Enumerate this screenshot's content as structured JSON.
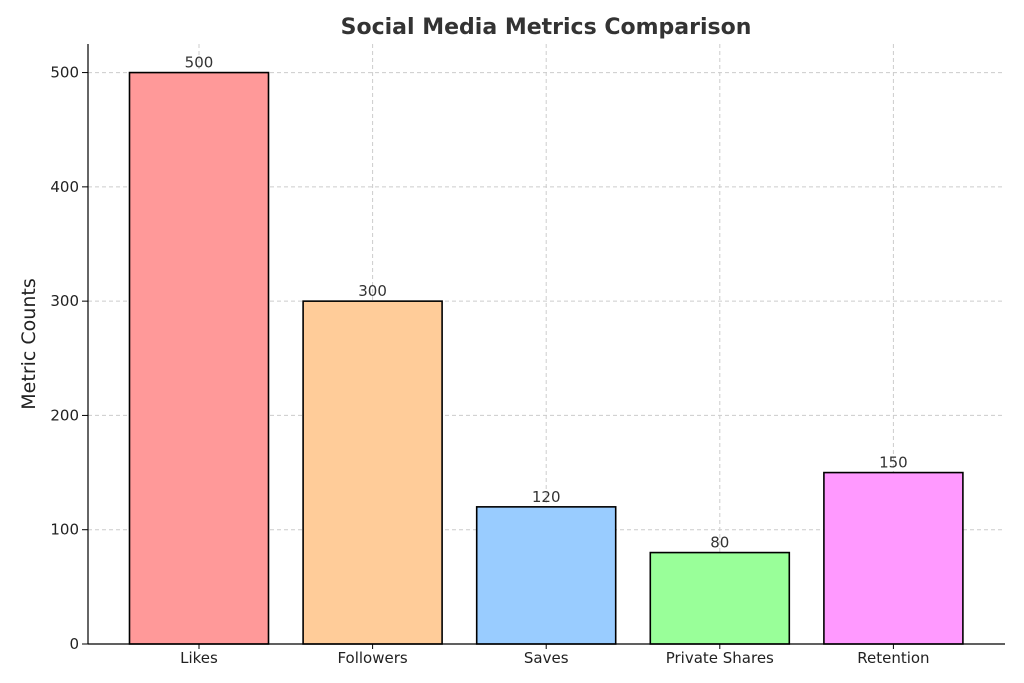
{
  "chart_data": {
    "type": "bar",
    "title": "Social Media Metrics Comparison",
    "xlabel": "",
    "ylabel": "Metric Counts",
    "categories": [
      "Likes",
      "Followers",
      "Saves",
      "Private Shares",
      "Retention"
    ],
    "values": [
      500,
      300,
      120,
      80,
      150
    ],
    "data_labels": [
      "500",
      "300",
      "120",
      "80",
      "150"
    ],
    "colors": [
      "#ff9999",
      "#ffcc99",
      "#99ccff",
      "#99ff99",
      "#ff99ff"
    ],
    "edge_color": "#000000",
    "ylim": [
      0,
      525
    ],
    "yticks": [
      0,
      100,
      200,
      300,
      400,
      500
    ],
    "grid": true
  }
}
